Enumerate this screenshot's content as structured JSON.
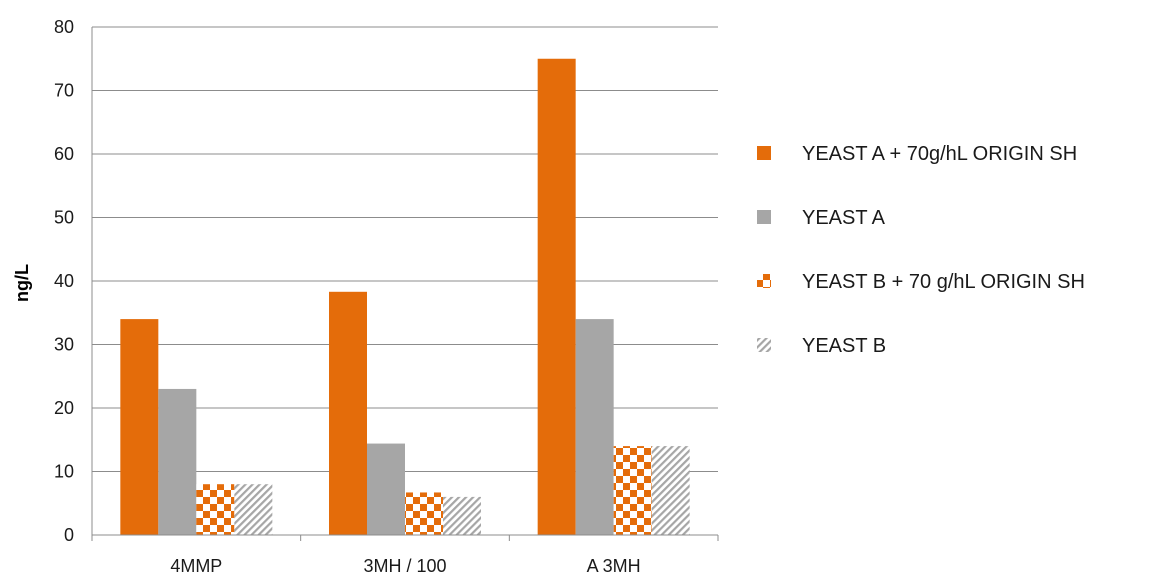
{
  "chart_data": {
    "type": "bar",
    "title": "",
    "xlabel": "",
    "ylabel": "ng/L",
    "ylim": [
      0,
      80
    ],
    "ytick_step": 10,
    "grid": true,
    "legend_position": "right",
    "categories": [
      "4MMP",
      "3MH / 100",
      "A 3MH"
    ],
    "series": [
      {
        "name": "YEAST A + 70g/hL ORIGIN SH",
        "values": [
          34,
          38.3,
          75
        ],
        "color": "#E46C0A",
        "pattern": "solid"
      },
      {
        "name": "YEAST A",
        "values": [
          23,
          14.4,
          34
        ],
        "color": "#A6A6A6",
        "pattern": "solid"
      },
      {
        "name": "YEAST B + 70 g/hL ORIGIN SH",
        "values": [
          8,
          6.7,
          14
        ],
        "color": "#E46C0A",
        "pattern": "checker"
      },
      {
        "name": "YEAST B",
        "values": [
          8,
          6,
          14
        ],
        "color": "#A6A6A6",
        "pattern": "diagonal"
      }
    ]
  }
}
